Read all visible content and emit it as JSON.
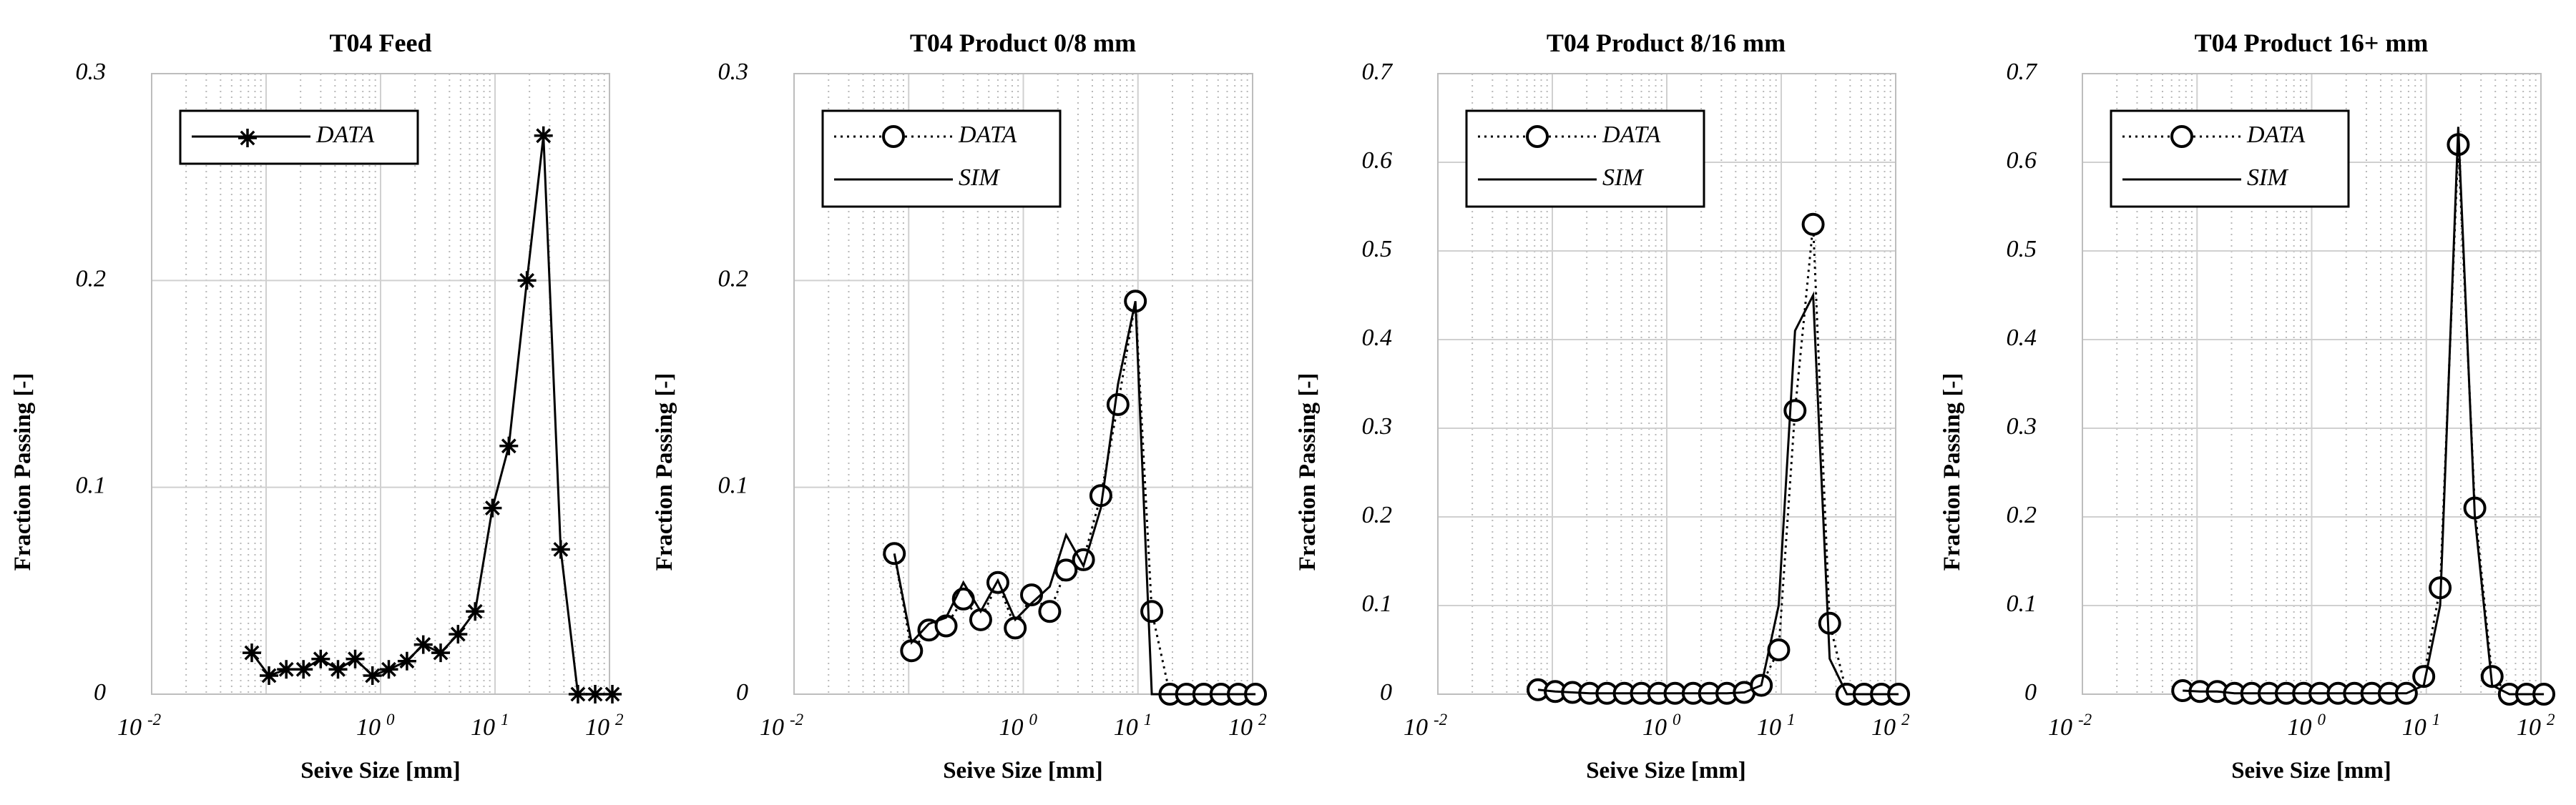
{
  "chart_data": [
    {
      "type": "line",
      "title": "T04 Feed",
      "xlabel": "Seive Size [mm]",
      "ylabel": "Fraction Passing [-]",
      "xscale": "log",
      "xlim": [
        0.01,
        100
      ],
      "ylim": [
        0,
        0.3
      ],
      "yticks": [
        "0",
        "0.1",
        "0.2",
        "0.3"
      ],
      "xticks": [
        {
          "base": "10",
          "exp": "-2"
        },
        {
          "base": "10",
          "exp": "0"
        },
        {
          "base": "10",
          "exp": "1"
        },
        {
          "base": "10",
          "exp": "2"
        }
      ],
      "grid": true,
      "legend": "top-left",
      "series": [
        {
          "name": "DATA",
          "marker": "star",
          "line": "solid",
          "x": [
            0.075,
            0.106,
            0.15,
            0.212,
            0.3,
            0.425,
            0.6,
            0.85,
            1.18,
            1.7,
            2.36,
            3.35,
            4.75,
            6.7,
            9.5,
            13.2,
            19,
            26.5,
            37.5,
            53,
            75,
            106
          ],
          "y": [
            0.02,
            0.009,
            0.012,
            0.012,
            0.017,
            0.012,
            0.017,
            0.009,
            0.012,
            0.016,
            0.024,
            0.02,
            0.029,
            0.04,
            0.09,
            0.12,
            0.2,
            0.27,
            0.07,
            0.0,
            0.0,
            0.0
          ]
        }
      ]
    },
    {
      "type": "line",
      "title": "T04 Product 0/8 mm",
      "xlabel": "Seive Size [mm]",
      "ylabel": "Fraction Passing [-]",
      "xscale": "log",
      "xlim": [
        0.01,
        100
      ],
      "ylim": [
        0,
        0.3
      ],
      "yticks": [
        "0",
        "0.1",
        "0.2",
        "0.3"
      ],
      "xticks": [
        {
          "base": "10",
          "exp": "-2"
        },
        {
          "base": "10",
          "exp": "0"
        },
        {
          "base": "10",
          "exp": "1"
        },
        {
          "base": "10",
          "exp": "2"
        }
      ],
      "grid": true,
      "legend": "top-left",
      "series": [
        {
          "name": "DATA",
          "marker": "circle",
          "line": "dotted",
          "x": [
            0.075,
            0.106,
            0.15,
            0.212,
            0.3,
            0.425,
            0.6,
            0.85,
            1.18,
            1.7,
            2.36,
            3.35,
            4.75,
            6.7,
            9.5,
            13.2,
            19,
            26.5,
            37.5,
            53,
            75,
            106
          ],
          "y": [
            0.068,
            0.021,
            0.031,
            0.033,
            0.046,
            0.036,
            0.054,
            0.032,
            0.048,
            0.04,
            0.06,
            0.065,
            0.096,
            0.14,
            0.19,
            0.04,
            0.0,
            0.0,
            0.0,
            0.0,
            0.0,
            0.0
          ]
        },
        {
          "name": "SIM",
          "marker": "none",
          "line": "solid",
          "x": [
            0.075,
            0.106,
            0.15,
            0.212,
            0.3,
            0.425,
            0.6,
            0.85,
            1.18,
            1.7,
            2.36,
            3.35,
            4.75,
            6.7,
            9.5,
            13.2,
            19,
            26.5,
            37.5,
            53,
            75,
            106
          ],
          "y": [
            0.068,
            0.025,
            0.034,
            0.037,
            0.054,
            0.04,
            0.055,
            0.036,
            0.044,
            0.052,
            0.077,
            0.062,
            0.09,
            0.15,
            0.19,
            0.0,
            0.0,
            0.0,
            0.0,
            0.0,
            0.0,
            0.0
          ]
        }
      ]
    },
    {
      "type": "line",
      "title": "T04 Product 8/16 mm",
      "xlabel": "Seive Size [mm]",
      "ylabel": "Fraction Passing [-]",
      "xscale": "log",
      "xlim": [
        0.01,
        100
      ],
      "ylim": [
        0,
        0.7
      ],
      "yticks": [
        "0",
        "0.1",
        "0.2",
        "0.3",
        "0.4",
        "0.5",
        "0.6",
        "0.7"
      ],
      "xticks": [
        {
          "base": "10",
          "exp": "-2"
        },
        {
          "base": "10",
          "exp": "0"
        },
        {
          "base": "10",
          "exp": "1"
        },
        {
          "base": "10",
          "exp": "2"
        }
      ],
      "grid": true,
      "legend": "top-left",
      "series": [
        {
          "name": "DATA",
          "marker": "circle",
          "line": "dotted",
          "x": [
            0.075,
            0.106,
            0.15,
            0.212,
            0.3,
            0.425,
            0.6,
            0.85,
            1.18,
            1.7,
            2.36,
            3.35,
            4.75,
            6.7,
            9.5,
            13.2,
            19,
            26.5,
            37.5,
            53,
            75,
            106
          ],
          "y": [
            0.005,
            0.003,
            0.002,
            0.001,
            0.001,
            0.001,
            0.001,
            0.001,
            0.001,
            0.001,
            0.001,
            0.001,
            0.002,
            0.01,
            0.05,
            0.32,
            0.53,
            0.08,
            0.0,
            0.0,
            0.0,
            0.0
          ]
        },
        {
          "name": "SIM",
          "marker": "none",
          "line": "solid",
          "x": [
            0.075,
            0.106,
            0.15,
            0.212,
            0.3,
            0.425,
            0.6,
            0.85,
            1.18,
            1.7,
            2.36,
            3.35,
            4.75,
            6.7,
            9.5,
            13.2,
            19,
            26.5,
            37.5,
            53,
            75,
            106
          ],
          "y": [
            0.005,
            0.003,
            0.002,
            0.001,
            0.001,
            0.001,
            0.001,
            0.001,
            0.001,
            0.001,
            0.001,
            0.001,
            0.002,
            0.01,
            0.1,
            0.41,
            0.45,
            0.04,
            0.0,
            0.0,
            0.0,
            0.0
          ]
        }
      ]
    },
    {
      "type": "line",
      "title": "T04 Product 16+ mm",
      "xlabel": "Seive Size [mm]",
      "ylabel": "Fraction Passing [-]",
      "xscale": "log",
      "xlim": [
        0.01,
        100
      ],
      "ylim": [
        0,
        0.7
      ],
      "yticks": [
        "0",
        "0.1",
        "0.2",
        "0.3",
        "0.4",
        "0.5",
        "0.6",
        "0.7"
      ],
      "xticks": [
        {
          "base": "10",
          "exp": "-2"
        },
        {
          "base": "10",
          "exp": "0"
        },
        {
          "base": "10",
          "exp": "1"
        },
        {
          "base": "10",
          "exp": "2"
        }
      ],
      "grid": true,
      "legend": "top-left",
      "series": [
        {
          "name": "DATA",
          "marker": "circle",
          "line": "dotted",
          "x": [
            0.075,
            0.106,
            0.15,
            0.212,
            0.3,
            0.425,
            0.6,
            0.85,
            1.18,
            1.7,
            2.36,
            3.35,
            4.75,
            6.7,
            9.5,
            13.2,
            19,
            26.5,
            37.5,
            53,
            75,
            106
          ],
          "y": [
            0.004,
            0.003,
            0.003,
            0.001,
            0.001,
            0.001,
            0.001,
            0.001,
            0.001,
            0.001,
            0.001,
            0.001,
            0.001,
            0.001,
            0.02,
            0.12,
            0.62,
            0.21,
            0.02,
            0.0,
            0.0,
            0.0
          ]
        },
        {
          "name": "SIM",
          "marker": "none",
          "line": "solid",
          "x": [
            0.075,
            0.106,
            0.15,
            0.212,
            0.3,
            0.425,
            0.6,
            0.85,
            1.18,
            1.7,
            2.36,
            3.35,
            4.75,
            6.7,
            9.5,
            13.2,
            19,
            26.5,
            37.5,
            53,
            75,
            106
          ],
          "y": [
            0.004,
            0.003,
            0.003,
            0.001,
            0.001,
            0.001,
            0.001,
            0.001,
            0.001,
            0.001,
            0.001,
            0.001,
            0.001,
            0.001,
            0.01,
            0.1,
            0.64,
            0.2,
            0.01,
            0.0,
            0.0,
            0.0
          ]
        }
      ]
    }
  ]
}
